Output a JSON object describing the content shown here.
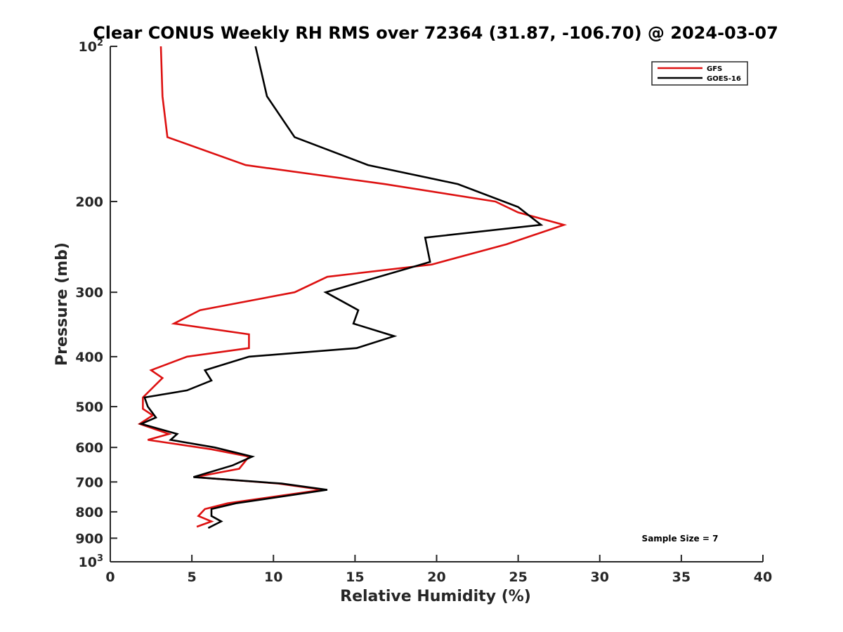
{
  "chart_data": {
    "type": "line",
    "title": "Clear CONUS Weekly RH RMS over 72364 (31.87, -106.70) @ 2024-03-07",
    "xlabel": "Relative Humidity (%)",
    "ylabel": "Pressure (mb)",
    "xlim": [
      0,
      40
    ],
    "ylim": [
      100,
      1000
    ],
    "y_scale": "log",
    "y_reversed": true,
    "x_ticks": [
      "0",
      "5",
      "10",
      "15",
      "20",
      "25",
      "30",
      "35",
      "40"
    ],
    "y_ticks": [
      {
        "value": 100,
        "base": "10",
        "exp": "2"
      },
      {
        "value": 200,
        "label": "200"
      },
      {
        "value": 300,
        "label": "300"
      },
      {
        "value": 400,
        "label": "400"
      },
      {
        "value": 500,
        "label": "500"
      },
      {
        "value": 600,
        "label": "600"
      },
      {
        "value": 700,
        "label": "700"
      },
      {
        "value": 800,
        "label": "800"
      },
      {
        "value": 900,
        "label": "900"
      },
      {
        "value": 1000,
        "base": "10",
        "exp": "3"
      }
    ],
    "grid": false,
    "legend_position": "top-right",
    "series": [
      {
        "name": "GFS",
        "color": "#dd1111",
        "points": [
          {
            "x": 3.1,
            "y": 100
          },
          {
            "x": 3.2,
            "y": 125
          },
          {
            "x": 3.5,
            "y": 150
          },
          {
            "x": 8.3,
            "y": 170
          },
          {
            "x": 16.8,
            "y": 185
          },
          {
            "x": 23.6,
            "y": 200
          },
          {
            "x": 25.0,
            "y": 210
          },
          {
            "x": 27.8,
            "y": 222
          },
          {
            "x": 24.3,
            "y": 242
          },
          {
            "x": 19.7,
            "y": 265
          },
          {
            "x": 13.3,
            "y": 280
          },
          {
            "x": 11.3,
            "y": 300
          },
          {
            "x": 5.5,
            "y": 325
          },
          {
            "x": 3.9,
            "y": 345
          },
          {
            "x": 8.5,
            "y": 362
          },
          {
            "x": 8.5,
            "y": 385
          },
          {
            "x": 4.7,
            "y": 400
          },
          {
            "x": 2.5,
            "y": 425
          },
          {
            "x": 3.2,
            "y": 440
          },
          {
            "x": 2.0,
            "y": 480
          },
          {
            "x": 2.0,
            "y": 505
          },
          {
            "x": 2.6,
            "y": 520
          },
          {
            "x": 1.8,
            "y": 540
          },
          {
            "x": 3.6,
            "y": 565
          },
          {
            "x": 2.3,
            "y": 580
          },
          {
            "x": 6.2,
            "y": 605
          },
          {
            "x": 8.5,
            "y": 625
          },
          {
            "x": 7.9,
            "y": 660
          },
          {
            "x": 5.2,
            "y": 685
          },
          {
            "x": 10.3,
            "y": 705
          },
          {
            "x": 13.0,
            "y": 725
          },
          {
            "x": 7.2,
            "y": 770
          },
          {
            "x": 5.8,
            "y": 790
          },
          {
            "x": 5.4,
            "y": 815
          },
          {
            "x": 6.2,
            "y": 835
          },
          {
            "x": 5.3,
            "y": 855
          }
        ]
      },
      {
        "name": "GOES-16",
        "color": "#000000",
        "points": [
          {
            "x": 8.9,
            "y": 100
          },
          {
            "x": 9.6,
            "y": 125
          },
          {
            "x": 11.3,
            "y": 150
          },
          {
            "x": 15.8,
            "y": 170
          },
          {
            "x": 21.3,
            "y": 185
          },
          {
            "x": 25.0,
            "y": 205
          },
          {
            "x": 26.4,
            "y": 222
          },
          {
            "x": 19.3,
            "y": 235
          },
          {
            "x": 19.6,
            "y": 262
          },
          {
            "x": 13.2,
            "y": 300
          },
          {
            "x": 15.2,
            "y": 325
          },
          {
            "x": 14.9,
            "y": 345
          },
          {
            "x": 17.4,
            "y": 365
          },
          {
            "x": 15.1,
            "y": 385
          },
          {
            "x": 8.5,
            "y": 400
          },
          {
            "x": 5.8,
            "y": 425
          },
          {
            "x": 6.2,
            "y": 445
          },
          {
            "x": 4.7,
            "y": 465
          },
          {
            "x": 2.1,
            "y": 480
          },
          {
            "x": 2.3,
            "y": 500
          },
          {
            "x": 2.8,
            "y": 525
          },
          {
            "x": 1.9,
            "y": 540
          },
          {
            "x": 4.1,
            "y": 565
          },
          {
            "x": 3.7,
            "y": 580
          },
          {
            "x": 6.4,
            "y": 600
          },
          {
            "x": 8.7,
            "y": 625
          },
          {
            "x": 7.5,
            "y": 650
          },
          {
            "x": 5.1,
            "y": 685
          },
          {
            "x": 10.5,
            "y": 705
          },
          {
            "x": 13.3,
            "y": 725
          },
          {
            "x": 7.7,
            "y": 770
          },
          {
            "x": 6.2,
            "y": 790
          },
          {
            "x": 6.2,
            "y": 815
          },
          {
            "x": 6.8,
            "y": 835
          },
          {
            "x": 6.0,
            "y": 860
          }
        ]
      }
    ],
    "annotations": [
      {
        "text": "Sample Size = 7",
        "position": "bottom-right"
      }
    ]
  }
}
